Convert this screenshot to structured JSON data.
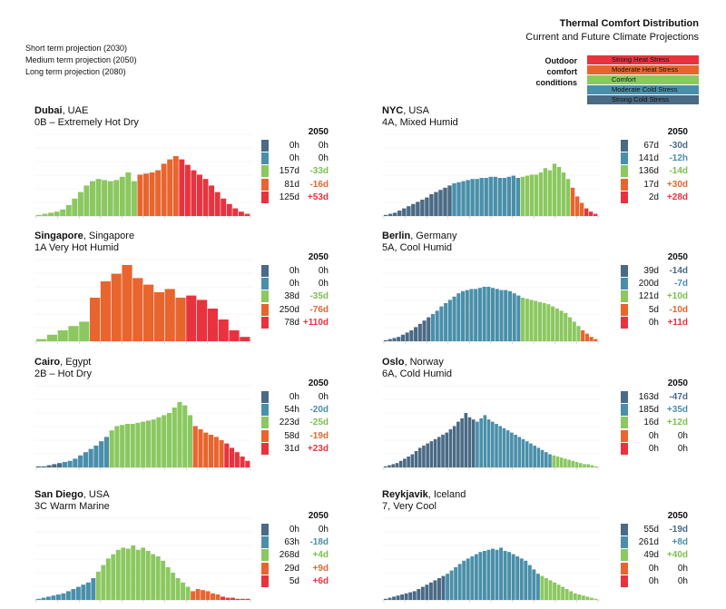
{
  "header": {
    "title": "Thermal Comfort Distribution",
    "subtitle": "Current and Future Climate Projections"
  },
  "projections": [
    "Short term projection (2030)",
    "Medium term projection (2050)",
    "Long term projection (2080)"
  ],
  "legend": {
    "title": [
      "Outdoor",
      "comfort",
      "conditions"
    ],
    "items": [
      {
        "label": "Strong Heat Stress",
        "color": "#e8333f"
      },
      {
        "label": "Moderate Heat Stress",
        "color": "#e8652e"
      },
      {
        "label": "Comfort",
        "color": "#8bc860"
      },
      {
        "label": "Moderate Cold Stress",
        "color": "#4a8faa"
      },
      {
        "label": "Strong Cold Stress",
        "color": "#4a6a85"
      }
    ]
  },
  "year_label": "2050",
  "category_colors": [
    "#4a6a85",
    "#4a8faa",
    "#8bc860",
    "#e8652e",
    "#e8333f"
  ],
  "delta_colors": [
    "#4a6a85",
    "#4a8faa",
    "#7cbf4f",
    "#e8652e",
    "#e8333f"
  ],
  "cities": [
    {
      "name": "Dubai",
      "country": ", UAE",
      "zone": "0B – Extremely Hot Dry",
      "current": [
        "0h",
        "0h",
        "157d",
        "81d",
        "125d"
      ],
      "delta": [
        "0h",
        "0h",
        "-33d",
        "-16d",
        "+53d"
      ]
    },
    {
      "name": "NYC",
      "country": ", USA",
      "zone": "4A, Mixed Humid",
      "current": [
        "67d",
        "141d",
        "136d",
        "17d",
        "2d"
      ],
      "delta": [
        "-30d",
        "-12h",
        "-14d",
        "+30d",
        "+28d"
      ]
    },
    {
      "name": "Singapore",
      "country": ", Singapore",
      "zone": "1A Very Hot Humid",
      "current": [
        "0h",
        "0h",
        "38d",
        "250d",
        "78d"
      ],
      "delta": [
        "0h",
        "0h",
        "-35d",
        "-76d",
        "+110d"
      ]
    },
    {
      "name": "Berlin",
      "country": ", Germany",
      "zone": "5A, Cool Humid",
      "current": [
        "39d",
        "200d",
        "121d",
        "5d",
        "0h"
      ],
      "delta": [
        "-14d",
        "-7d",
        "+10d",
        "-10d",
        "+11d"
      ]
    },
    {
      "name": "Cairo",
      "country": ", Egypt",
      "zone": "2B – Hot Dry",
      "current": [
        "0h",
        "54h",
        "223d",
        "58d",
        "31d"
      ],
      "delta": [
        "0h",
        "-20d",
        "-25d",
        "-19d",
        "+23d"
      ]
    },
    {
      "name": "Oslo",
      "country": ", Norway",
      "zone": "6A, Cold Humid",
      "current": [
        "163d",
        "185d",
        "16d",
        "0h",
        "0h"
      ],
      "delta": [
        "-47d",
        "+35d",
        "+12d",
        "0h",
        "0h"
      ]
    },
    {
      "name": "San Diego",
      "country": ", USA",
      "zone": "3C Warm Marine",
      "current": [
        "0h",
        "63h",
        "268d",
        "29d",
        "5d"
      ],
      "delta": [
        "0h",
        "-18d",
        "+4d",
        "+9d",
        "+6d"
      ]
    },
    {
      "name": "Reykjavik",
      "country": ", Iceland",
      "zone": "7, Very Cool",
      "current": [
        "55d",
        "261d",
        "49d",
        "0h",
        "0h"
      ],
      "delta": [
        "-19d",
        "+8d",
        "+40d",
        "0h",
        "0h"
      ]
    }
  ],
  "chart_data": [
    {
      "type": "bar",
      "title": "Dubai",
      "bin_categories": [
        2,
        2,
        2,
        2,
        2,
        2,
        2,
        2,
        2,
        2,
        2,
        2,
        2,
        2,
        2,
        2,
        2,
        3,
        3,
        3,
        3,
        3,
        3,
        3,
        4,
        4,
        4,
        4,
        4,
        4,
        4,
        4,
        4,
        4,
        4,
        4
      ],
      "values": [
        1,
        2,
        3,
        4,
        6,
        10,
        16,
        22,
        28,
        32,
        34,
        33,
        32,
        33,
        36,
        40,
        32,
        38,
        39,
        40,
        42,
        48,
        52,
        55,
        52,
        47,
        42,
        38,
        34,
        28,
        22,
        16,
        11,
        7,
        4,
        2
      ]
    },
    {
      "type": "bar",
      "title": "NYC",
      "bin_categories": [
        0,
        0,
        0,
        0,
        0,
        0,
        0,
        0,
        0,
        0,
        0,
        0,
        0,
        0,
        0,
        1,
        1,
        1,
        1,
        1,
        1,
        1,
        1,
        1,
        1,
        1,
        1,
        1,
        1,
        1,
        2,
        2,
        2,
        2,
        2,
        2,
        2,
        2,
        2,
        2,
        2,
        3,
        3,
        3,
        4,
        4,
        4
      ],
      "values": [
        1,
        2,
        3,
        5,
        7,
        9,
        11,
        13,
        15,
        17,
        20,
        22,
        24,
        26,
        28,
        30,
        31,
        32,
        33,
        34,
        34,
        35,
        35,
        36,
        36,
        35,
        35,
        36,
        37,
        35,
        36,
        37,
        38,
        38,
        40,
        44,
        42,
        48,
        45,
        40,
        34,
        26,
        18,
        12,
        7,
        4,
        2
      ]
    },
    {
      "type": "bar",
      "title": "Singapore",
      "bin_categories": [
        2,
        2,
        2,
        2,
        2,
        3,
        3,
        3,
        3,
        3,
        3,
        3,
        3,
        3,
        4,
        4,
        4,
        4,
        4,
        4
      ],
      "values": [
        2,
        6,
        10,
        14,
        18,
        40,
        55,
        62,
        70,
        58,
        52,
        45,
        48,
        40,
        42,
        38,
        30,
        20,
        10,
        4
      ]
    },
    {
      "type": "bar",
      "title": "Berlin",
      "bin_categories": [
        0,
        0,
        0,
        0,
        0,
        0,
        0,
        0,
        0,
        0,
        0,
        1,
        1,
        1,
        1,
        1,
        1,
        1,
        1,
        1,
        1,
        1,
        1,
        1,
        1,
        1,
        1,
        1,
        1,
        1,
        1,
        1,
        2,
        2,
        2,
        2,
        2,
        2,
        2,
        2,
        2,
        2,
        2,
        2,
        2,
        2,
        3,
        3,
        3,
        3
      ],
      "values": [
        1,
        2,
        3,
        4,
        6,
        8,
        10,
        13,
        16,
        19,
        22,
        25,
        28,
        32,
        35,
        38,
        41,
        44,
        46,
        47,
        48,
        48,
        49,
        50,
        50,
        49,
        48,
        47,
        47,
        46,
        44,
        42,
        40,
        39,
        38,
        37,
        36,
        35,
        34,
        32,
        30,
        28,
        26,
        22,
        18,
        14,
        10,
        7,
        4,
        2
      ]
    },
    {
      "type": "bar",
      "title": "Cairo",
      "bin_categories": [
        0,
        0,
        0,
        0,
        0,
        1,
        1,
        1,
        1,
        1,
        1,
        1,
        1,
        1,
        2,
        2,
        2,
        2,
        2,
        2,
        2,
        2,
        2,
        2,
        2,
        2,
        2,
        2,
        2,
        2,
        3,
        3,
        3,
        3,
        3,
        3,
        4,
        4,
        4,
        4,
        4
      ],
      "values": [
        1,
        1,
        2,
        3,
        4,
        5,
        6,
        8,
        11,
        14,
        17,
        20,
        24,
        28,
        34,
        38,
        39,
        40,
        40,
        41,
        42,
        43,
        44,
        46,
        48,
        50,
        55,
        60,
        57,
        48,
        38,
        35,
        32,
        30,
        28,
        25,
        22,
        18,
        14,
        10,
        6
      ]
    },
    {
      "type": "bar",
      "title": "Oslo",
      "bin_categories": [
        0,
        0,
        0,
        0,
        0,
        0,
        0,
        0,
        0,
        0,
        0,
        0,
        0,
        0,
        0,
        0,
        0,
        0,
        0,
        0,
        0,
        0,
        0,
        0,
        1,
        1,
        1,
        1,
        1,
        1,
        1,
        1,
        1,
        1,
        1,
        1,
        1,
        1,
        1,
        1,
        1,
        1,
        1,
        1,
        2,
        2,
        2,
        2,
        2,
        2,
        2,
        2,
        2,
        2,
        2,
        2
      ],
      "values": [
        1,
        2,
        3,
        4,
        6,
        8,
        10,
        12,
        15,
        18,
        20,
        22,
        24,
        26,
        28,
        30,
        32,
        35,
        38,
        42,
        45,
        50,
        46,
        44,
        42,
        45,
        48,
        44,
        42,
        40,
        38,
        36,
        34,
        32,
        30,
        28,
        26,
        24,
        22,
        20,
        18,
        16,
        14,
        12,
        11,
        10,
        9,
        8,
        7,
        6,
        5,
        4,
        3,
        3,
        2,
        1
      ]
    },
    {
      "type": "bar",
      "title": "San Diego",
      "bin_categories": [
        1,
        1,
        1,
        1,
        1,
        1,
        1,
        1,
        1,
        1,
        1,
        1,
        2,
        2,
        2,
        2,
        2,
        2,
        2,
        2,
        2,
        2,
        2,
        2,
        2,
        2,
        2,
        2,
        2,
        2,
        2,
        3,
        3,
        3,
        3,
        3,
        3,
        4,
        4,
        4,
        4,
        4,
        4
      ],
      "values": [
        1,
        2,
        3,
        4,
        5,
        6,
        8,
        10,
        12,
        14,
        16,
        20,
        26,
        32,
        38,
        42,
        46,
        48,
        47,
        50,
        46,
        48,
        45,
        42,
        40,
        36,
        30,
        25,
        20,
        16,
        12,
        8,
        10,
        9,
        8,
        6,
        5,
        3,
        2,
        2,
        1,
        1,
        1
      ]
    },
    {
      "type": "bar",
      "title": "Reykjavik",
      "bin_categories": [
        0,
        0,
        0,
        0,
        0,
        0,
        0,
        0,
        0,
        0,
        0,
        0,
        0,
        0,
        0,
        1,
        1,
        1,
        1,
        1,
        1,
        1,
        1,
        1,
        1,
        1,
        1,
        1,
        1,
        1,
        1,
        1,
        1,
        1,
        1,
        1,
        1,
        1,
        2,
        2,
        2,
        2,
        2,
        2,
        2,
        2,
        2,
        2,
        2,
        2,
        2,
        2
      ],
      "values": [
        1,
        2,
        3,
        4,
        5,
        6,
        7,
        8,
        10,
        12,
        14,
        16,
        18,
        20,
        22,
        24,
        27,
        30,
        33,
        36,
        38,
        40,
        42,
        44,
        45,
        46,
        47,
        46,
        48,
        45,
        44,
        42,
        40,
        38,
        36,
        32,
        28,
        24,
        22,
        20,
        18,
        16,
        14,
        12,
        10,
        8,
        6,
        5,
        4,
        3,
        2,
        1
      ]
    }
  ]
}
